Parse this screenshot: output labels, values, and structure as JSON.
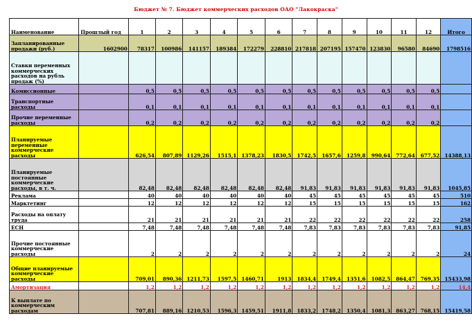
{
  "title": "Бюджет № 7. Бюджет коммерческих расходов ОАО \"Лакокраска\"",
  "headers": [
    "Наименование",
    "Прошлый год",
    "1",
    "2",
    "3",
    "4",
    "5",
    "6",
    "7",
    "8",
    "9",
    "10",
    "11",
    "12",
    "Итого"
  ],
  "rows": [
    {
      "label": "Запланированные продажи (руб.)",
      "cells": [
        "1602900",
        "78317",
        "100986",
        "141157",
        "189384",
        "172279",
        "228810",
        "217818",
        "207195",
        "157470",
        "123830",
        "96580",
        "84690",
        "1798516"
      ]
    },
    {
      "label": "Ставки переменных коммерческих расходов на рубль продаж (%)",
      "cells": [
        "",
        "",
        "",
        "",
        "",
        "",
        "",
        "",
        "",
        "",
        "",
        "",
        "",
        ""
      ]
    },
    {
      "label": "Комиссионные",
      "cells": [
        "",
        "0,5",
        "0,5",
        "0,5",
        "0,5",
        "0,5",
        "0,5",
        "0,5",
        "0,5",
        "0,5",
        "0,5",
        "0,5",
        "0,5",
        ""
      ]
    },
    {
      "label": "Транспортные расходы",
      "cells": [
        "",
        "0,1",
        "0,1",
        "0,1",
        "0,1",
        "0,1",
        "0,1",
        "0,1",
        "0,1",
        "0,1",
        "0,1",
        "0,1",
        "0,1",
        ""
      ]
    },
    {
      "label": "Прочие переменные расходы",
      "cells": [
        "",
        "0,2",
        "0,2",
        "0,2",
        "0,2",
        "0,2",
        "0,2",
        "0,2",
        "0,2",
        "0,2",
        "0,2",
        "0,2",
        "0,2",
        ""
      ]
    },
    {
      "label": "Планируемые переменные коммерческие расходы",
      "cells": [
        "",
        "626,54",
        "807,89",
        "1129,26",
        "1515,1",
        "1378,23",
        "1830,5",
        "1742,5",
        "1657,6",
        "1259,8",
        "990,64",
        "772,64",
        "677,52",
        "14388,13"
      ]
    },
    {
      "label": "Планируемые постоянные коммерческие расходы, в т. ч.",
      "cells": [
        "",
        "82,48",
        "82,48",
        "82,48",
        "82,48",
        "82,48",
        "82,48",
        "91,83",
        "91,83",
        "91,83",
        "91,83",
        "91,83",
        "91,83",
        "1045,85"
      ]
    },
    {
      "label": "Реклама",
      "cells": [
        "",
        "40",
        "40",
        "40",
        "40",
        "40",
        "40",
        "45",
        "45",
        "45",
        "45",
        "45",
        "45",
        "510"
      ]
    },
    {
      "label": "Марктетинг",
      "cells": [
        "",
        "12",
        "12",
        "12",
        "12",
        "12",
        "12",
        "15",
        "15",
        "15",
        "15",
        "15",
        "15",
        "162"
      ]
    },
    {
      "label": "Расходы на оплату труда",
      "cells": [
        "",
        "21",
        "21",
        "21",
        "21",
        "21",
        "21",
        "22",
        "22",
        "22",
        "22",
        "22",
        "22",
        "258"
      ]
    },
    {
      "label": "ЕСН",
      "cells": [
        "",
        "7,48",
        "7,48",
        "7,48",
        "7,48",
        "7,48",
        "7,48",
        "7,83",
        "7,83",
        "7,83",
        "7,83",
        "7,83",
        "7,83",
        "91,85"
      ]
    },
    {
      "label": "Прочие постоянные коммерческие расходы",
      "cells": [
        "",
        "2",
        "2",
        "2",
        "2",
        "2",
        "2",
        "2",
        "2",
        "2",
        "2",
        "2",
        "2",
        "24"
      ]
    },
    {
      "label": "Общие планируемые коммерческие расходы",
      "cells": [
        "",
        "709,01",
        "890,36",
        "1211,73",
        "1597,5",
        "1460,71",
        "1913",
        "1834,4",
        "1749,4",
        "1351,6",
        "1082,5",
        "864,47",
        "769,35",
        "15433,98"
      ]
    },
    {
      "label": "Амортизация",
      "cells": [
        "",
        "1,2",
        "1,2",
        "1,2",
        "1,2",
        "1,2",
        "1,2",
        "1,2",
        "1,2",
        "1,2",
        "1,2",
        "1,2",
        "1,2",
        "14,4"
      ]
    },
    {
      "label": "К выплате по коммерческим расходам",
      "cells": [
        "",
        "707,81",
        "889,16",
        "1210,53",
        "1596,3",
        "1459,51",
        "1911,8",
        "1833,2",
        "1748,2",
        "1350,4",
        "1081,3",
        "863,27",
        "768,15",
        "15419,58"
      ]
    }
  ],
  "colors": {
    "title": "#cc0000",
    "olive": "#d4d49a",
    "cyan": "#e6f7f7",
    "lavender": "#b9a9d9",
    "yellow": "#ffff00",
    "gray": "#d6d6d6",
    "tan": "#c8b8a0",
    "total": "#8ab8f5",
    "red": "#e02020"
  }
}
